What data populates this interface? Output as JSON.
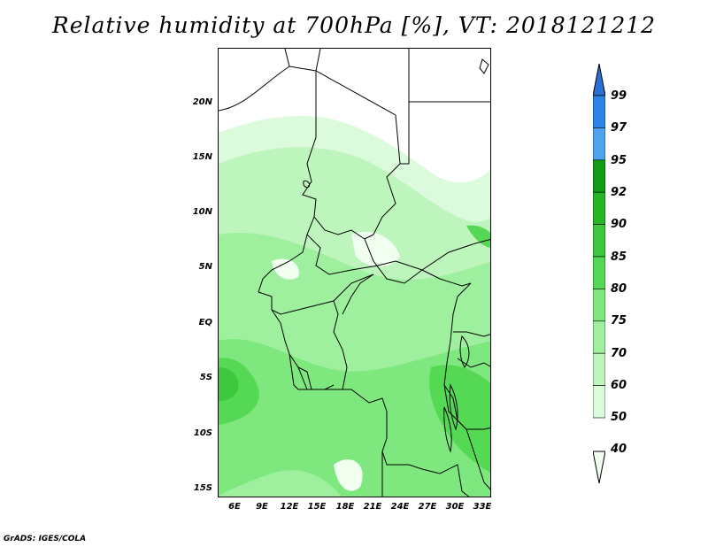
{
  "title": "Relative humidity at 700hPa [%], VT: 2018121212",
  "footer": "GrADS: IGES/COLA",
  "map": {
    "lon_labels": [
      "6E",
      "9E",
      "12E",
      "15E",
      "18E",
      "21E",
      "24E",
      "27E",
      "30E",
      "33E"
    ],
    "lat_labels": [
      "20N",
      "15N",
      "10N",
      "5N",
      "EQ",
      "5S",
      "10S",
      "15S"
    ],
    "lon_range": [
      4,
      33
    ],
    "lat_range": [
      -16,
      25
    ]
  },
  "colorbar": {
    "labels": [
      "99",
      "97",
      "95",
      "92",
      "90",
      "85",
      "80",
      "75",
      "70",
      "60",
      "50",
      "40"
    ],
    "colors": [
      "#2a6fd6",
      "#2b84e8",
      "#4da3f0",
      "#139c13",
      "#25b525",
      "#3ec83e",
      "#55d955",
      "#7ee87e",
      "#9ef09e",
      "#bdf5bd",
      "#dcfadc",
      "#f0fff0"
    ]
  }
}
